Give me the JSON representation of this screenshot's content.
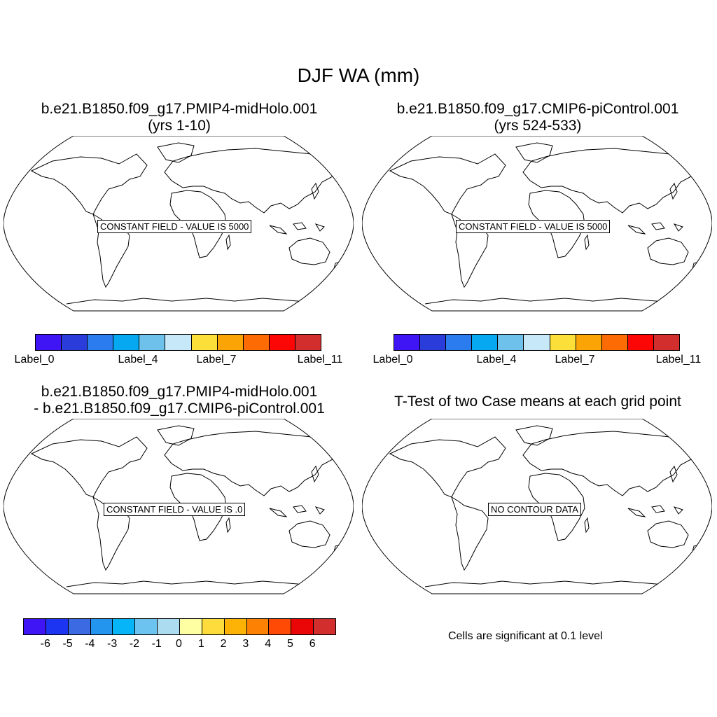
{
  "main_title": "DJF WA (mm)",
  "panels": [
    {
      "title_line1": "b.e21.B1850.f09_g17.PMIP4-midHolo.001",
      "title_line2": "(yrs 1-10)",
      "field_message": "CONSTANT FIELD - VALUE IS 5000"
    },
    {
      "title_line1": "b.e21.B1850.f09_g17.CMIP6-piControl.001",
      "title_line2": "(yrs 524-533)",
      "field_message": "CONSTANT FIELD - VALUE IS 5000"
    },
    {
      "title_line1": "b.e21.B1850.f09_g17.PMIP4-midHolo.001",
      "title_line2": "- b.e21.B1850.f09_g17.CMIP6-piControl.001",
      "field_message": "CONSTANT FIELD - VALUE IS .0"
    },
    {
      "title_line1": "T-Test of two Case means at each grid point",
      "title_line2": "",
      "field_message": "NO CONTOUR DATA"
    }
  ],
  "colorbar_top": {
    "colors": [
      "#4015f5",
      "#2a3ddb",
      "#2b7cee",
      "#06a8f2",
      "#6ec1ea",
      "#c7e8f8",
      "#fce039",
      "#fba406",
      "#fd6b05",
      "#fd0606",
      "#d22e2e"
    ],
    "labels": [
      "Label_0",
      "Label_4",
      "Label_7",
      "Label_11"
    ]
  },
  "colorbar_bottom": {
    "colors": [
      "#4015f5",
      "#1c35f3",
      "#3c6ae2",
      "#2495ef",
      "#06b4f8",
      "#6dc3ef",
      "#acdcef",
      "#fefea2",
      "#fedc3c",
      "#fcb306",
      "#fd8204",
      "#ff4a05",
      "#ea0606",
      "#d22e2e"
    ],
    "labels": [
      "-6",
      "-5",
      "-4",
      "-3",
      "-2",
      "-1",
      "0",
      "1",
      "2",
      "3",
      "4",
      "5",
      "6"
    ]
  },
  "significance_note": "Cells are significant at 0.1 level"
}
